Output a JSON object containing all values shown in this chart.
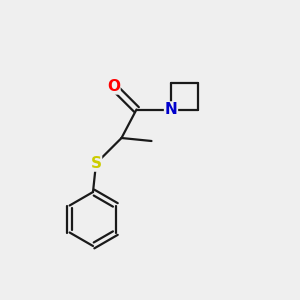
{
  "background_color": "#efefef",
  "bond_color": "#1a1a1a",
  "O_color": "#ff0000",
  "N_color": "#0000cc",
  "S_color": "#cccc00",
  "line_width": 1.6,
  "figsize": [
    3.0,
    3.0
  ],
  "dpi": 100,
  "xlim": [
    0,
    10
  ],
  "ylim": [
    0,
    10
  ]
}
